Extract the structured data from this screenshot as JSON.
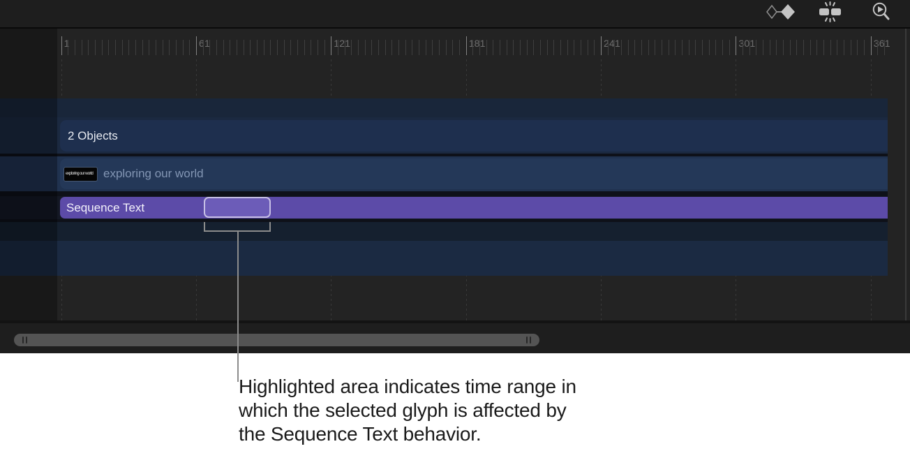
{
  "toolbar": {
    "icons": [
      {
        "name": "keyframes-icon"
      },
      {
        "name": "flash-clips-icon"
      },
      {
        "name": "zoom-play-icon"
      }
    ]
  },
  "ruler": {
    "labels": [
      "1",
      "61",
      "121",
      "181",
      "241",
      "301",
      "361"
    ]
  },
  "timeline": {
    "group": {
      "label": "2 Objects"
    },
    "layer": {
      "thumb_text": "exploring our world",
      "label": "exploring our world"
    },
    "behavior": {
      "label": "Sequence Text"
    }
  },
  "caption": {
    "lines": [
      "Highlighted area indicates time range in",
      "which the selected glyph is affected by",
      "the Sequence Text behavior."
    ]
  },
  "colors": {
    "behavior_purple": "#5c4ba8",
    "highlight_fill": "#6c5cb8",
    "highlight_border": "#c7c0e6",
    "group_navy": "#1e2f4e",
    "layer_navy": "#243858",
    "toolbar_bg": "#1e1e1e",
    "timeline_bg": "#232323",
    "annotation_gray": "#8c8c8c"
  }
}
